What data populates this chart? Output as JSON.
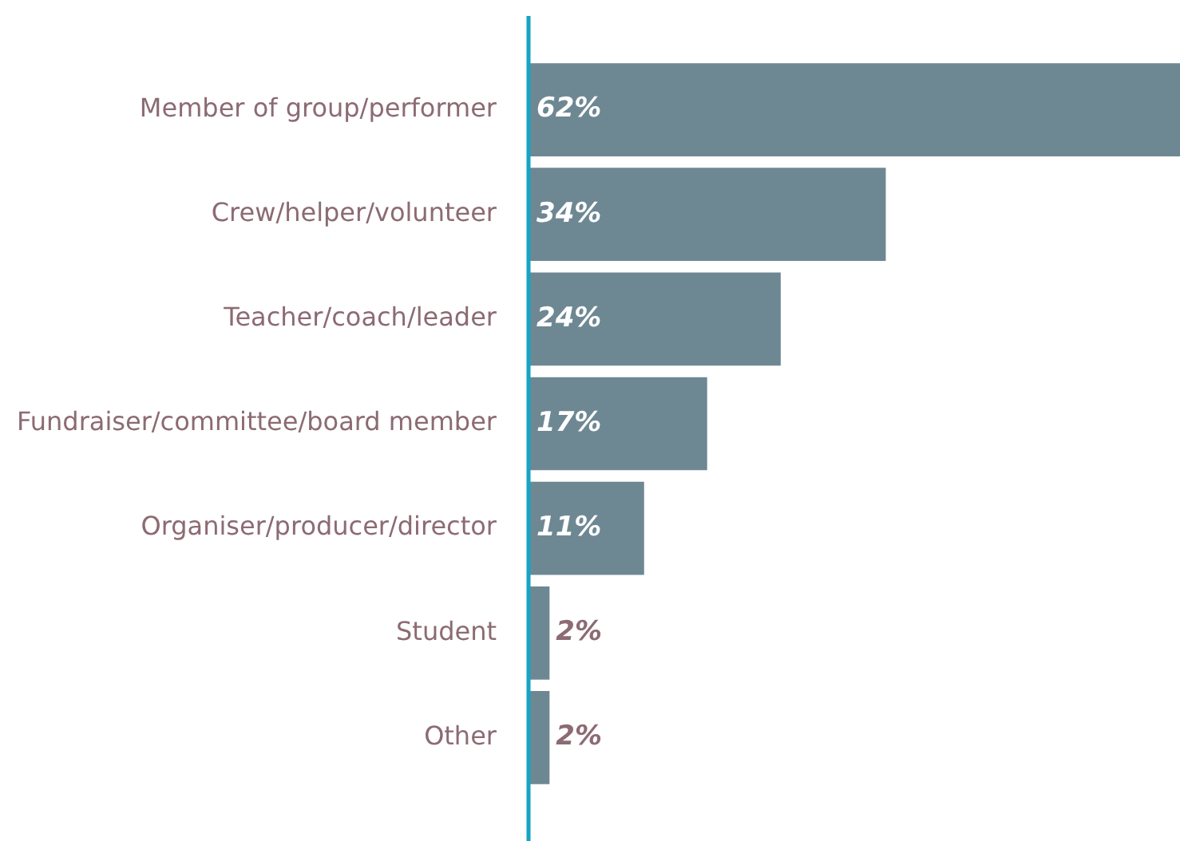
{
  "chart_data": {
    "type": "bar",
    "orientation": "horizontal",
    "categories": [
      "Member of group/performer",
      "Crew/helper/volunteer",
      "Teacher/coach/leader",
      "Fundraiser/committee/board member",
      "Organiser/producer/director",
      "Student",
      "Other"
    ],
    "values": [
      62,
      34,
      24,
      17,
      11,
      2,
      2
    ],
    "value_labels": [
      "62%",
      "34%",
      "24%",
      "17%",
      "11%",
      "2%",
      "2%"
    ],
    "color": "#6e8893",
    "grid": false,
    "legend": false
  }
}
